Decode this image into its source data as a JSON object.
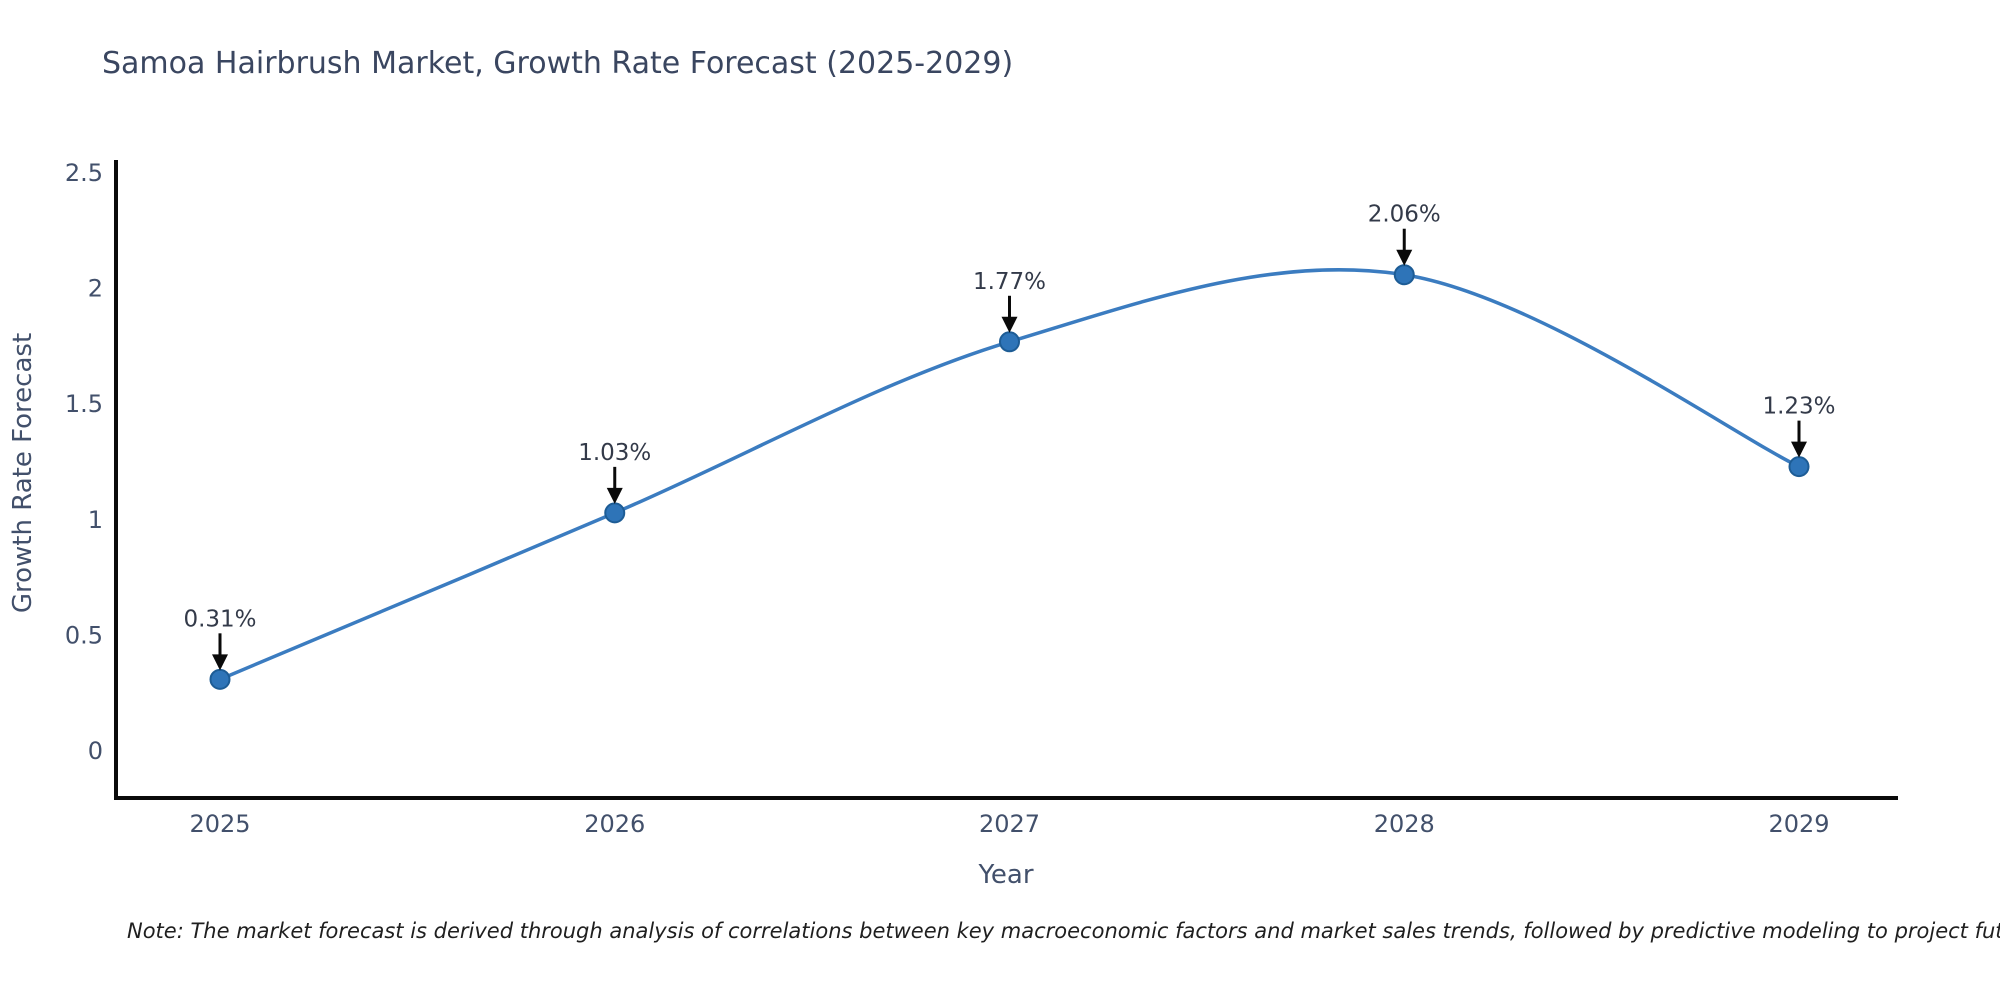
{
  "title": "Samoa Hairbrush Market, Growth Rate Forecast (2025-2029)",
  "note": "Note: The market forecast is derived through analysis of correlations between key macroeconomic factors and market sales trends, followed by predictive modeling to project future sales",
  "chart_data": {
    "type": "line",
    "title": "Samoa Hairbrush Market, Growth Rate Forecast (2025-2029)",
    "categories": [
      "2025",
      "2026",
      "2027",
      "2028",
      "2029"
    ],
    "x": [
      2025,
      2026,
      2027,
      2028,
      2029
    ],
    "values": [
      0.31,
      1.03,
      1.77,
      2.06,
      1.23
    ],
    "point_labels": [
      "0.31%",
      "1.03%",
      "1.77%",
      "2.06%",
      "1.23%"
    ],
    "xlabel": "Year",
    "ylabel": "Growth Rate Forecast",
    "y_tick_labels": [
      "0",
      "0.5",
      "1",
      "1.5",
      "2",
      "2.5"
    ],
    "y_tick_values": [
      0,
      0.5,
      1,
      1.5,
      2,
      2.5
    ],
    "ylim": [
      0,
      2.5
    ],
    "grid": false,
    "legend_position": "none",
    "line_color": "#3b7cc0",
    "marker_color": "#2e74b8",
    "marker_edge_color": "#1d5c95",
    "arrow_color": "#0a0a0a",
    "axis_color": "#0a0a0a",
    "title_color": "#3a4660",
    "tick_label_color": "#42506b",
    "note_color": "#1f1f1f"
  }
}
